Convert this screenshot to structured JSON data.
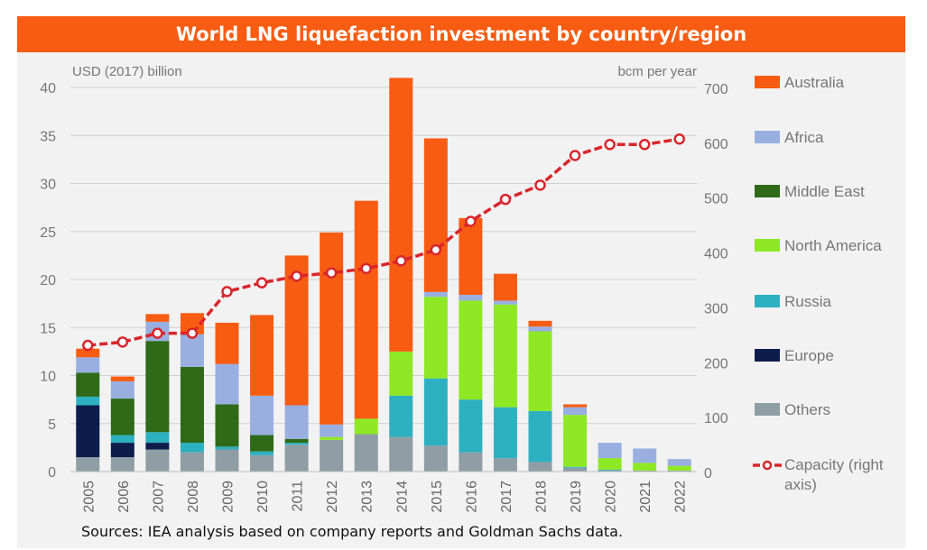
{
  "title": "World LNG liquefaction investment by country/region",
  "source": "Sources: IEA analysis based on company reports and Goldman Sachs data.",
  "colors": {
    "title_bg": "#f75c12",
    "panel_bg": "#f2f2f2",
    "Australia": "#f75c12",
    "Africa": "#98afe0",
    "Middle East": "#2e6a18",
    "North America": "#8fe824",
    "Russia": "#2db0c0",
    "Europe": "#0c1d4c",
    "Others": "#8f9da4",
    "Capacity": "#d9252b"
  },
  "chart_data": {
    "type": "bar",
    "stacked": true,
    "title": "World LNG liquefaction investment by country/region",
    "ylabel": "USD (2017) billion",
    "y2label": "bcm per year",
    "ylim": [
      0,
      40
    ],
    "y2lim": [
      0,
      700
    ],
    "yticks": [
      0,
      5,
      10,
      15,
      20,
      25,
      30,
      35,
      40
    ],
    "y2ticks": [
      0,
      100,
      200,
      300,
      400,
      500,
      600,
      700
    ],
    "categories": [
      "2005",
      "2006",
      "2007",
      "2008",
      "2009",
      "2010",
      "2011",
      "2012",
      "2013",
      "2014",
      "2015",
      "2016",
      "2017",
      "2018",
      "2019",
      "2020",
      "2021",
      "2022"
    ],
    "series": [
      {
        "name": "Others",
        "values": [
          1.5,
          1.5,
          2.3,
          2.0,
          2.3,
          1.7,
          2.8,
          3.3,
          3.9,
          3.6,
          2.7,
          2.0,
          1.4,
          1.0,
          0.4,
          0.1,
          0.1,
          0.1
        ]
      },
      {
        "name": "Europe",
        "values": [
          5.4,
          1.5,
          0.7,
          0,
          0,
          0,
          0,
          0,
          0,
          0,
          0,
          0,
          0,
          0,
          0,
          0,
          0,
          0
        ]
      },
      {
        "name": "Russia",
        "values": [
          0.9,
          0.8,
          1.1,
          1.0,
          0.3,
          0.4,
          0.2,
          0,
          0,
          4.3,
          7.0,
          5.5,
          5.3,
          5.3,
          0.1,
          0.1,
          0,
          0
        ]
      },
      {
        "name": "North America",
        "values": [
          0,
          0,
          0,
          0,
          0,
          0,
          0,
          0.3,
          1.6,
          4.6,
          8.5,
          10.3,
          10.7,
          8.3,
          5.4,
          1.2,
          0.8,
          0.5
        ]
      },
      {
        "name": "Middle East",
        "values": [
          2.5,
          3.8,
          9.5,
          7.9,
          4.4,
          1.7,
          0.4,
          0,
          0,
          0,
          0,
          0,
          0,
          0,
          0,
          0,
          0,
          0
        ]
      },
      {
        "name": "Africa",
        "values": [
          1.6,
          1.8,
          2.0,
          3.4,
          4.2,
          4.1,
          3.5,
          1.3,
          0,
          0,
          0.5,
          0.6,
          0.4,
          0.5,
          0.8,
          1.6,
          1.5,
          0.7
        ]
      },
      {
        "name": "Australia",
        "values": [
          0.9,
          0.5,
          0.8,
          2.2,
          4.3,
          8.4,
          15.6,
          20.0,
          22.7,
          28.5,
          16.0,
          8.0,
          2.8,
          0.6,
          0.3,
          0,
          0,
          0
        ]
      }
    ],
    "line": {
      "name": "Capacity (right axis)",
      "axis": "right",
      "values": [
        230,
        236,
        252,
        252,
        328,
        344,
        356,
        362,
        370,
        384,
        404,
        456,
        496,
        522,
        576,
        596,
        596,
        606
      ]
    },
    "legend": [
      "Australia",
      "Africa",
      "Middle East",
      "North America",
      "Russia",
      "Europe",
      "Others",
      "Capacity (right axis)"
    ],
    "legend_labels": {
      "Australia": "Australia",
      "Africa": "Africa",
      "Middle East": "Middle East",
      "North America": "North America",
      "Russia": "Russia",
      "Europe": "Europe",
      "Others": "Others",
      "capacity_line1": "Capacity (right",
      "capacity_line2": "axis)"
    },
    "legend_position": "right"
  }
}
